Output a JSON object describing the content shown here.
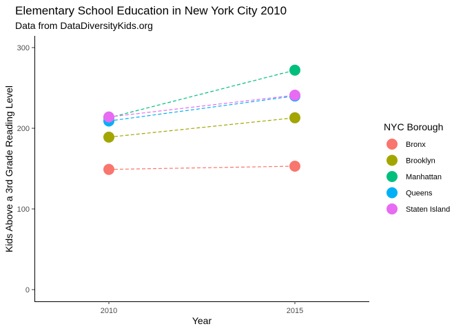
{
  "chart_data": {
    "type": "scatter",
    "title": "Elementary School Education in New York City 2010",
    "subtitle": "Data from DataDiversityKids.org",
    "xlabel": "Year",
    "ylabel": "Kids Above a 3rd Grade Reading Level",
    "x": [
      2010,
      2015
    ],
    "x_ticks": [
      "2010",
      "2015"
    ],
    "y_ticks": [
      0,
      100,
      200,
      300
    ],
    "ylim": [
      -15,
      315
    ],
    "grid": false,
    "connector": "dashed",
    "legend": {
      "title": "NYC Borough",
      "position": "right"
    },
    "series": [
      {
        "name": "Bronx",
        "color": "#F8766D",
        "values": [
          149,
          153
        ]
      },
      {
        "name": "Brooklyn",
        "color": "#A3A500",
        "values": [
          189,
          213
        ]
      },
      {
        "name": "Manhattan",
        "color": "#00BF7D",
        "values": [
          213,
          272
        ]
      },
      {
        "name": "Queens",
        "color": "#00B0F6",
        "values": [
          209,
          240
        ]
      },
      {
        "name": "Staten Island",
        "color": "#E76BF3",
        "values": [
          214,
          241
        ]
      }
    ]
  }
}
